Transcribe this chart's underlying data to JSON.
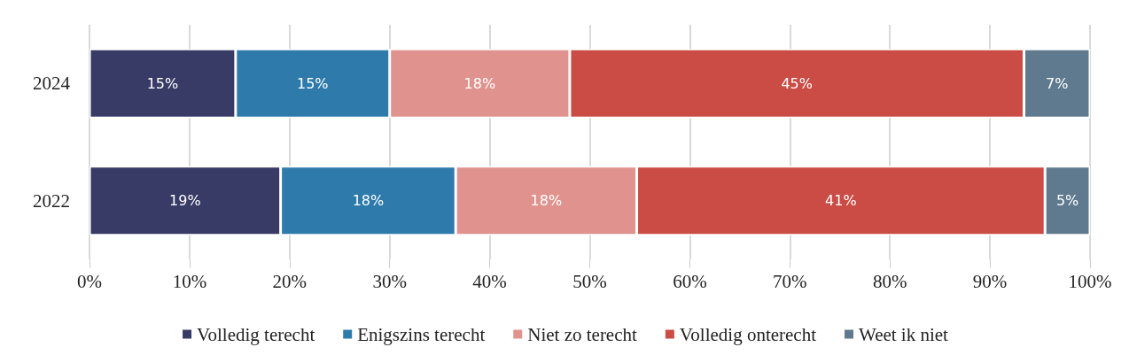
{
  "chart_data": {
    "type": "bar",
    "orientation": "horizontal",
    "stacked": true,
    "categories": [
      "2024",
      "2022"
    ],
    "series": [
      {
        "name": "Volledig terecht",
        "color": "#383b66",
        "values": [
          14.6,
          19.1
        ],
        "value_labels": [
          "15%",
          "19%"
        ]
      },
      {
        "name": "Enigszins terecht",
        "color": "#2e7bab",
        "values": [
          15.4,
          17.5
        ],
        "value_labels": [
          "15%",
          "18%"
        ]
      },
      {
        "name": "Niet zo terecht",
        "color": "#e0938e",
        "values": [
          18.0,
          18.1
        ],
        "value_labels": [
          "18%",
          "18%"
        ]
      },
      {
        "name": "Volledig onterecht",
        "color": "#cb4c45",
        "values": [
          45.4,
          40.8
        ],
        "value_labels": [
          "45%",
          "41%"
        ]
      },
      {
        "name": "Weet ik niet",
        "color": "#5f7a8f",
        "values": [
          6.6,
          4.5
        ],
        "value_labels": [
          "7%",
          "5%"
        ]
      }
    ],
    "xlim": [
      0,
      100
    ],
    "xticks": [
      {
        "value": 0,
        "label": "0%"
      },
      {
        "value": 10,
        "label": "10%"
      },
      {
        "value": 20,
        "label": "20%"
      },
      {
        "value": 30,
        "label": "30%"
      },
      {
        "value": 40,
        "label": "40%"
      },
      {
        "value": 50,
        "label": "50%"
      },
      {
        "value": 60,
        "label": "60%"
      },
      {
        "value": 70,
        "label": "70%"
      },
      {
        "value": 80,
        "label": "80%"
      },
      {
        "value": 90,
        "label": "90%"
      },
      {
        "value": 100,
        "label": "100%"
      }
    ],
    "grid": "x",
    "legend": "bottom"
  }
}
